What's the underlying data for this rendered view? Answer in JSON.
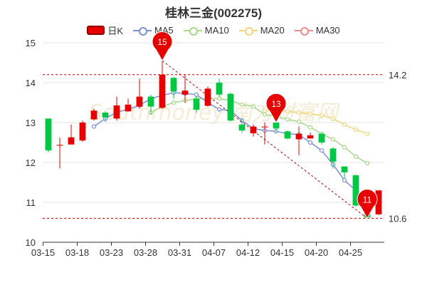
{
  "chart_data": {
    "type": "candlestick",
    "title": "桂林三金(002275)",
    "legend": [
      {
        "label": "日K",
        "color": "#e60000"
      },
      {
        "label": "MA5",
        "color": "#7b8fd6"
      },
      {
        "label": "MA10",
        "color": "#a6d98a"
      },
      {
        "label": "MA20",
        "color": "#f7d47b"
      },
      {
        "label": "MA30",
        "color": "#f08a86"
      }
    ],
    "ylim": [
      10,
      15
    ],
    "y_ticks": [
      "10",
      "11",
      "12",
      "13",
      "14",
      "15"
    ],
    "x_ticks": [
      "03-15",
      "03-18",
      "03-23",
      "03-28",
      "03-31",
      "04-07",
      "04-12",
      "04-15",
      "04-20",
      "04-25"
    ],
    "up_color": "#e60000",
    "down_color": "#00c844",
    "candles": [
      {
        "o": 13.1,
        "c": 12.3,
        "h": 13.1,
        "l": 12.25
      },
      {
        "o": 12.42,
        "c": 12.44,
        "h": 12.62,
        "l": 11.85
      },
      {
        "o": 12.45,
        "c": 12.63,
        "h": 12.95,
        "l": 12.45
      },
      {
        "o": 12.55,
        "c": 13.0,
        "h": 13.05,
        "l": 12.52
      },
      {
        "o": 13.08,
        "c": 13.3,
        "h": 13.35,
        "l": 13.05
      },
      {
        "o": 13.25,
        "c": 13.13,
        "h": 13.28,
        "l": 13.02
      },
      {
        "o": 13.1,
        "c": 13.43,
        "h": 13.65,
        "l": 13.05
      },
      {
        "o": 13.28,
        "c": 13.45,
        "h": 13.6,
        "l": 13.28
      },
      {
        "o": 13.4,
        "c": 13.65,
        "h": 14.1,
        "l": 13.35
      },
      {
        "o": 13.65,
        "c": 13.4,
        "h": 13.7,
        "l": 13.2
      },
      {
        "o": 13.37,
        "c": 14.2,
        "h": 14.6,
        "l": 13.35
      },
      {
        "o": 14.12,
        "c": 13.78,
        "h": 14.15,
        "l": 13.6
      },
      {
        "o": 13.7,
        "c": 13.8,
        "h": 14.2,
        "l": 13.5
      },
      {
        "o": 13.6,
        "c": 13.32,
        "h": 13.65,
        "l": 13.25
      },
      {
        "o": 13.42,
        "c": 13.85,
        "h": 13.9,
        "l": 13.4
      },
      {
        "o": 14.0,
        "c": 13.7,
        "h": 14.1,
        "l": 13.65
      },
      {
        "o": 13.72,
        "c": 13.05,
        "h": 13.75,
        "l": 13.02
      },
      {
        "o": 12.95,
        "c": 12.8,
        "h": 13.1,
        "l": 12.75
      },
      {
        "o": 12.73,
        "c": 12.9,
        "h": 12.95,
        "l": 12.65
      },
      {
        "o": 12.88,
        "c": 12.9,
        "h": 13.0,
        "l": 12.45
      },
      {
        "o": 13.0,
        "c": 12.85,
        "h": 13.05,
        "l": 12.75
      },
      {
        "o": 12.78,
        "c": 12.6,
        "h": 12.8,
        "l": 12.58
      },
      {
        "o": 12.58,
        "c": 12.72,
        "h": 12.9,
        "l": 12.18
      },
      {
        "o": 12.6,
        "c": 12.68,
        "h": 12.75,
        "l": 12.6
      },
      {
        "o": 12.72,
        "c": 12.5,
        "h": 12.75,
        "l": 12.45
      },
      {
        "o": 12.35,
        "c": 12.02,
        "h": 12.38,
        "l": 11.85
      },
      {
        "o": 11.9,
        "c": 11.75,
        "h": 11.9,
        "l": 11.6
      },
      {
        "o": 11.68,
        "c": 10.92,
        "h": 11.7,
        "l": 10.9
      },
      {
        "o": 10.93,
        "c": 10.62,
        "h": 10.95,
        "l": 10.6
      },
      {
        "o": 10.7,
        "c": 11.3,
        "h": 11.3,
        "l": 10.68
      }
    ],
    "ma5": [
      null,
      null,
      null,
      null,
      12.9,
      13.1,
      13.26,
      13.33,
      13.43,
      13.6,
      13.68,
      13.75,
      13.73,
      13.7,
      13.5,
      13.33,
      13.3,
      13.05,
      12.85,
      12.8,
      12.78,
      12.72,
      12.7,
      12.5,
      12.3,
      11.95,
      11.55,
      11.3,
      null,
      null
    ],
    "ma10": [
      null,
      null,
      null,
      null,
      null,
      null,
      null,
      null,
      null,
      13.25,
      13.4,
      13.5,
      13.55,
      13.6,
      13.6,
      13.6,
      13.55,
      13.45,
      13.4,
      13.2,
      13.15,
      13.08,
      13.02,
      12.88,
      12.72,
      12.58,
      12.38,
      12.15,
      11.98,
      null
    ],
    "ma20": [
      null,
      null,
      null,
      null,
      null,
      null,
      null,
      null,
      null,
      null,
      null,
      null,
      null,
      null,
      null,
      null,
      null,
      null,
      null,
      13.3,
      13.3,
      13.28,
      13.25,
      13.22,
      13.18,
      13.1,
      12.95,
      12.82,
      12.72,
      null
    ],
    "markers": [
      {
        "label": "15",
        "index": 10,
        "price": 14.55
      },
      {
        "label": "13",
        "index": 20,
        "price": 13.0
      },
      {
        "label": "11",
        "index": 28,
        "price": 10.6
      }
    ],
    "ref_lines": [
      {
        "value": 14.2,
        "label": "14.2"
      },
      {
        "value": 10.6,
        "label": "10.6"
      }
    ],
    "watermark": "Southmoney 南方财富网"
  }
}
